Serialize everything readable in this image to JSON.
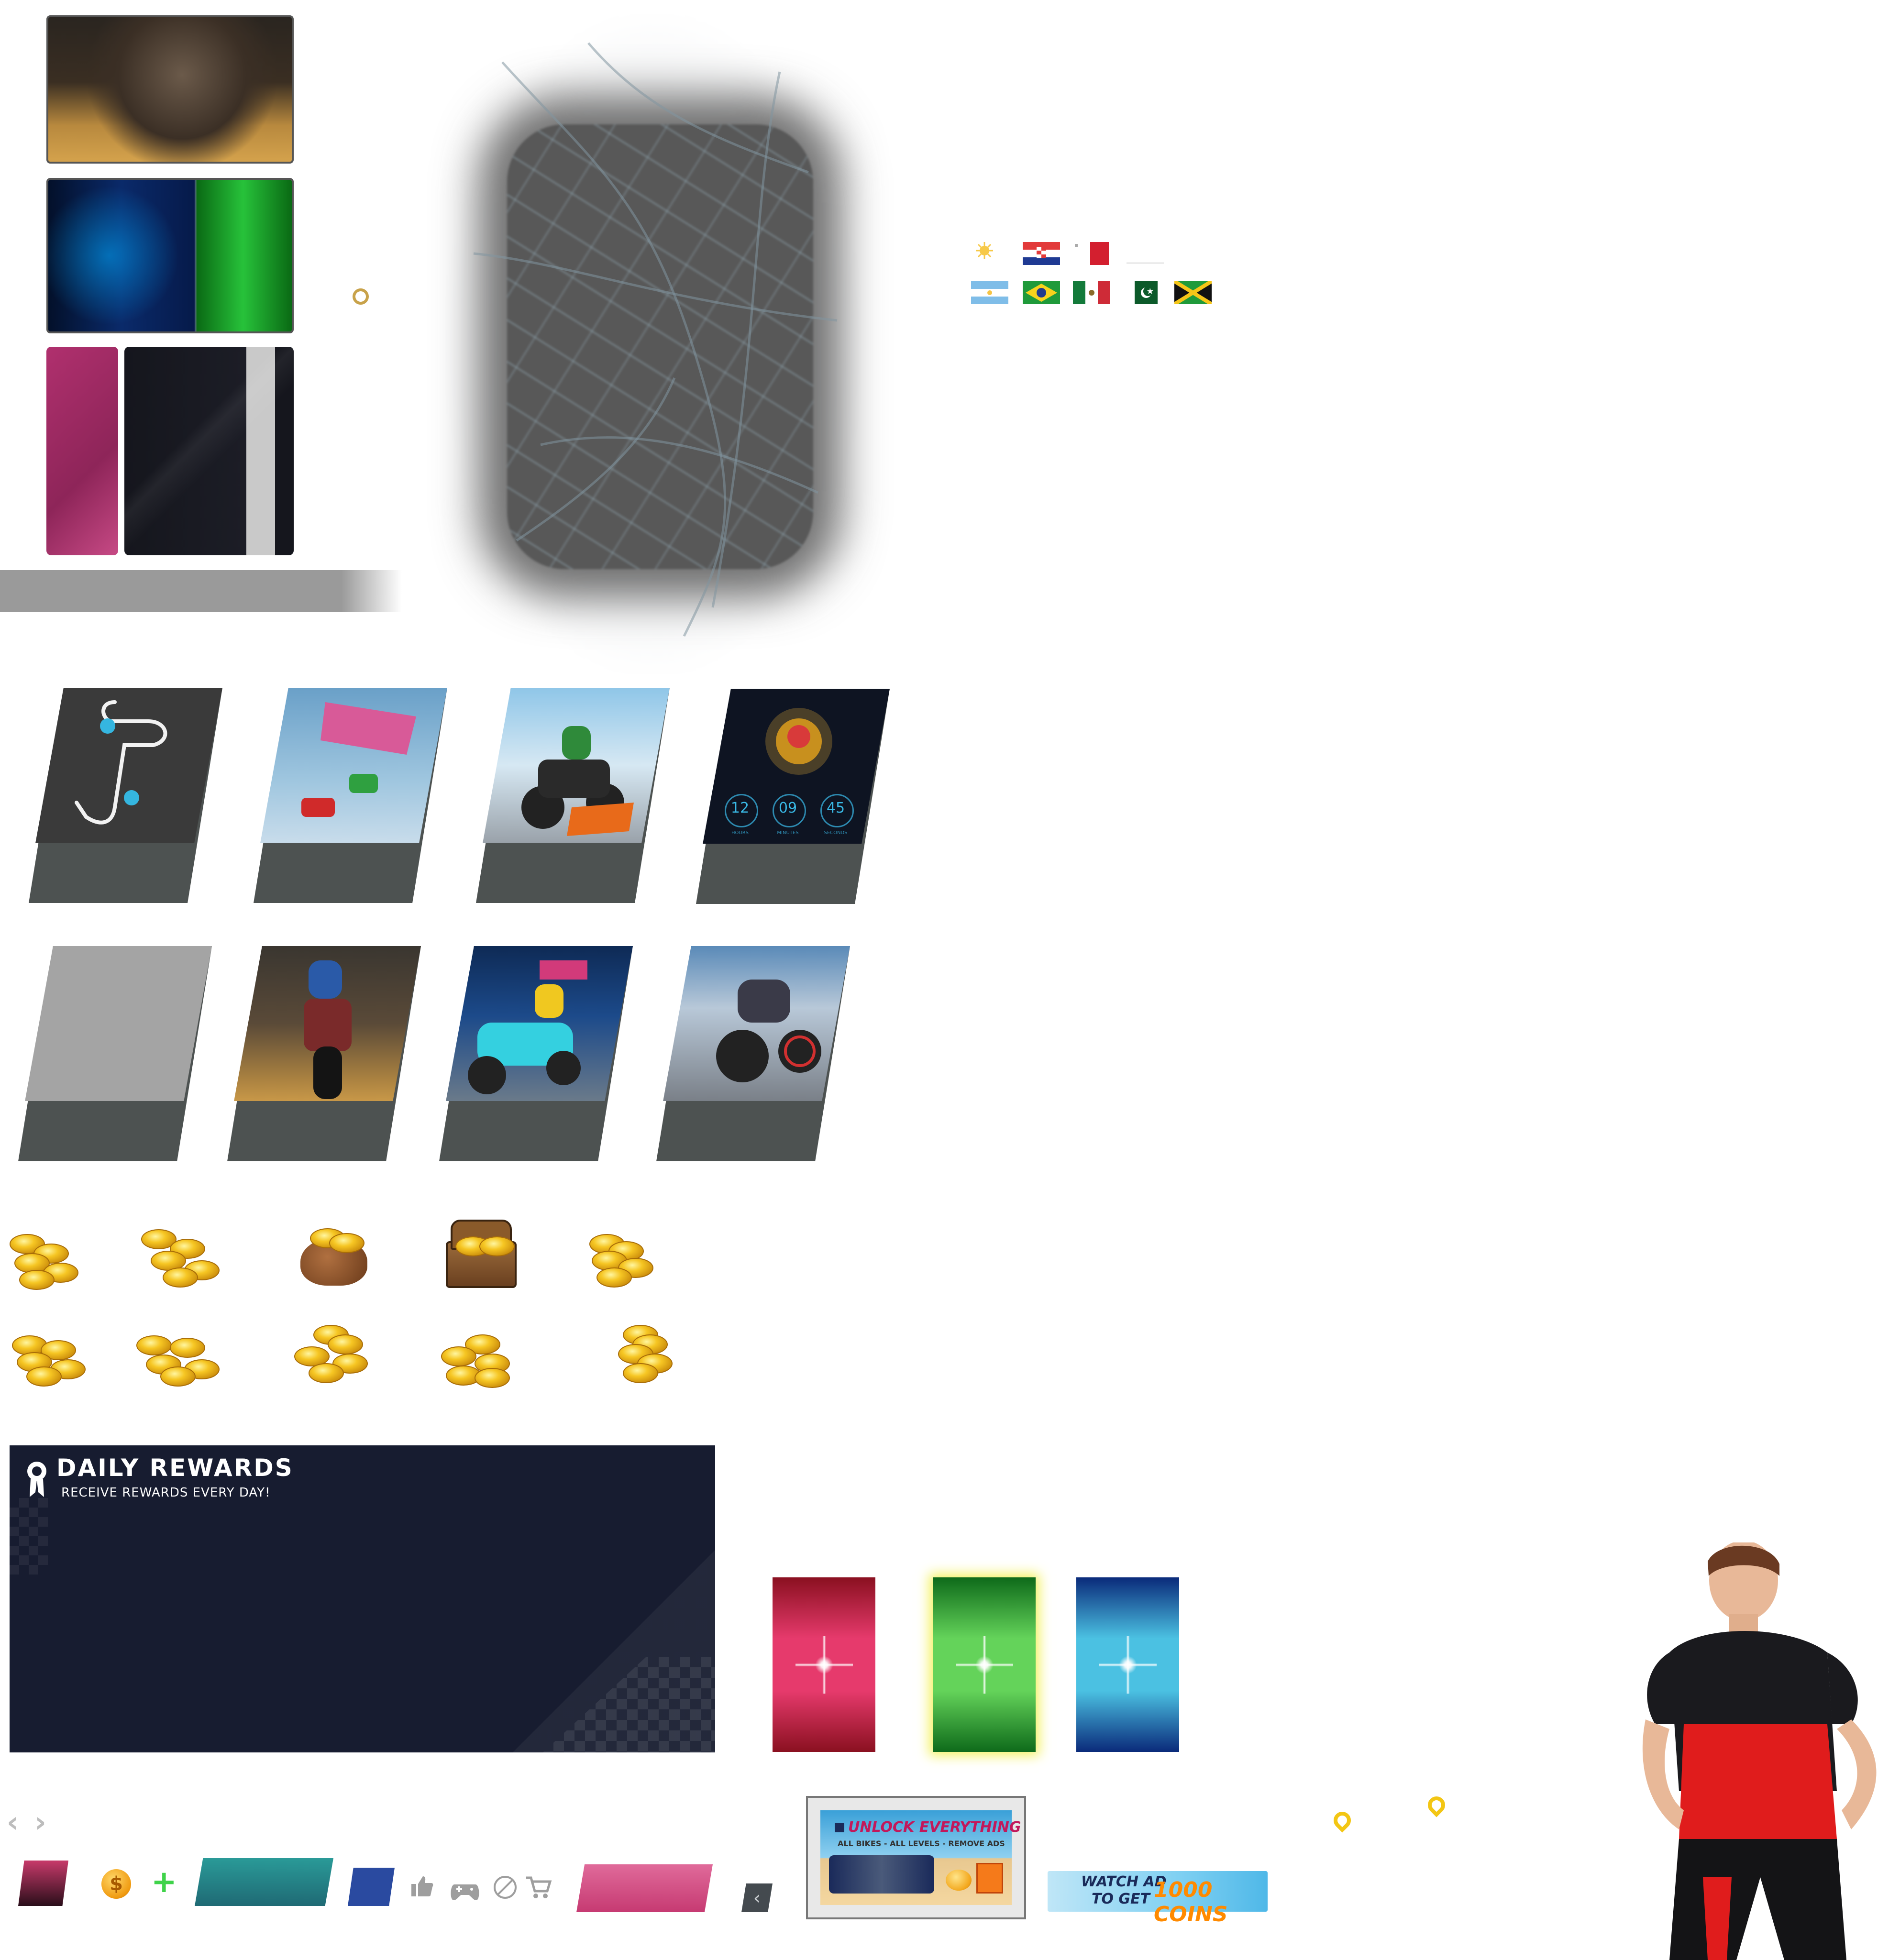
{
  "daily_rewards": {
    "title": "DAILY REWARDS",
    "subtitle": "RECEIVE REWARDS EVERY DAY!"
  },
  "timer": {
    "hours": "12",
    "minutes": "09",
    "seconds": "45",
    "hours_label": "HOURS",
    "minutes_label": "MINUTES",
    "seconds_label": "SECONDS"
  },
  "promo_banner": {
    "title": "UNLOCK EVERYTHING",
    "subtitle": "ALL BIKES - ALL LEVELS - REMOVE ADS"
  },
  "watch_ad": {
    "line1": "WATCH AD",
    "line2": "TO GET",
    "reward": "1000 COINS"
  },
  "icons": {
    "nav_prev": "chevron-left-icon",
    "nav_next": "chevron-right-icon",
    "coin": "coin-icon",
    "add": "plus-icon",
    "like": "thumbs-up-icon",
    "gamepad": "gamepad-icon",
    "no_ads": "no-ads-icon",
    "cart": "cart-icon",
    "back": "back-arrow-icon",
    "pin": "map-pin-icon"
  },
  "flags": [
    "uruguay",
    "croatia",
    "malta",
    "blank",
    "argentina",
    "brazil",
    "mexico",
    "pakistan",
    "jamaica"
  ],
  "colors": {
    "panel_navy": "#171c30",
    "card_grey": "#4d5251",
    "reward_red": "#e63a6c",
    "reward_green": "#64d35a",
    "reward_blue": "#4bc1e2",
    "accent_gold": "#f3c614",
    "teal": "#2a8c8a",
    "magenta": "#d44682"
  }
}
